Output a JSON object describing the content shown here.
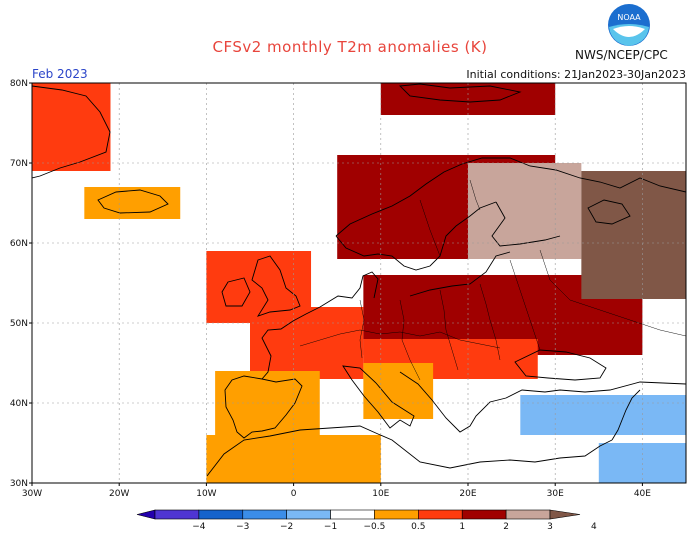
{
  "header": {
    "title": "CFSv2 monthly T2m anomalies (K)",
    "month": "Feb 2023",
    "initial_conditions": "Initial conditions: 21Jan2023-30Jan2023",
    "agency": "NWS/NCEP/CPC",
    "logo_text": "NOAA"
  },
  "map": {
    "lon_range": [
      -30,
      45
    ],
    "lat_range": [
      30,
      80
    ],
    "lat_ticks": [
      {
        "value": 80,
        "label": "80N"
      },
      {
        "value": 70,
        "label": "70N"
      },
      {
        "value": 60,
        "label": "60N"
      },
      {
        "value": 50,
        "label": "50N"
      },
      {
        "value": 40,
        "label": "40N"
      },
      {
        "value": 30,
        "label": "30N"
      }
    ],
    "lon_ticks": [
      {
        "value": -30,
        "label": "30W"
      },
      {
        "value": -20,
        "label": "20W"
      },
      {
        "value": -10,
        "label": "10W"
      },
      {
        "value": 0,
        "label": "0"
      },
      {
        "value": 10,
        "label": "10E"
      },
      {
        "value": 20,
        "label": "20E"
      },
      {
        "value": 30,
        "label": "30E"
      },
      {
        "value": 40,
        "label": "40E"
      }
    ],
    "grid": "dotted",
    "regions": [
      {
        "name": "greenland-east",
        "lon": [
          -30,
          -21
        ],
        "lat": [
          69,
          80
        ],
        "anomaly": 1
      },
      {
        "name": "svalbard",
        "lon": [
          10,
          30
        ],
        "lat": [
          76,
          80
        ],
        "anomaly": 2
      },
      {
        "name": "iceland",
        "lon": [
          -24,
          -13
        ],
        "lat": [
          63,
          67
        ],
        "anomaly": 0.5
      },
      {
        "name": "british-isles",
        "lon": [
          -10,
          2
        ],
        "lat": [
          50,
          59
        ],
        "anomaly": 1
      },
      {
        "name": "france-benelux",
        "lon": [
          -5,
          8
        ],
        "lat": [
          43,
          52
        ],
        "anomaly": 1
      },
      {
        "name": "iberia",
        "lon": [
          -9,
          3
        ],
        "lat": [
          36,
          44
        ],
        "anomaly": 0.5
      },
      {
        "name": "central-europe",
        "lon": [
          8,
          40
        ],
        "lat": [
          46,
          56
        ],
        "anomaly": 2
      },
      {
        "name": "alps-balkans",
        "lon": [
          8,
          28
        ],
        "lat": [
          43,
          48
        ],
        "anomaly": 1
      },
      {
        "name": "scandinavia",
        "lon": [
          5,
          30
        ],
        "lat": [
          58,
          71
        ],
        "anomaly": 2
      },
      {
        "name": "finland-baltics",
        "lon": [
          20,
          33
        ],
        "lat": [
          58,
          70
        ],
        "anomaly": 3
      },
      {
        "name": "northwest-russia",
        "lon": [
          33,
          45
        ],
        "lat": [
          53,
          69
        ],
        "anomaly": 4
      },
      {
        "name": "italy",
        "lon": [
          8,
          16
        ],
        "lat": [
          38,
          45
        ],
        "anomaly": 0.5
      },
      {
        "name": "anatolia",
        "lon": [
          26,
          45
        ],
        "lat": [
          36,
          41
        ],
        "anomaly": -0.5
      },
      {
        "name": "middle-east",
        "lon": [
          35,
          45
        ],
        "lat": [
          30,
          35
        ],
        "anomaly": -0.5
      },
      {
        "name": "north-africa",
        "lon": [
          -10,
          10
        ],
        "lat": [
          30,
          36
        ],
        "anomaly": 0.5
      }
    ]
  },
  "colorbar": {
    "labels": [
      "−4",
      "−3",
      "−2",
      "−1",
      "−0.5",
      "0.5",
      "1",
      "2",
      "3",
      "4"
    ],
    "colors": [
      "#2400ad",
      "#4f35d3",
      "#1563cc",
      "#3b8de8",
      "#7ab8f5",
      "#ffffff",
      "#ff9f00",
      "#ff3b0f",
      "#a00000",
      "#c8a59b",
      "#805747"
    ]
  }
}
